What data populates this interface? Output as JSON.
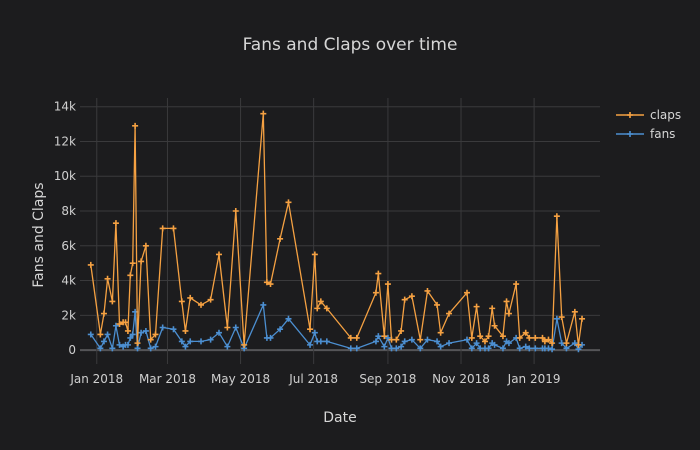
{
  "chart_data": {
    "type": "line",
    "title": "Fans and Claps over time",
    "xlabel": "Date",
    "ylabel": "Fans and Claps",
    "xlim": [
      "2017-12-18",
      "2019-02-25"
    ],
    "ylim": [
      -800,
      14500
    ],
    "x_ticks": [
      {
        "date": "2018-01-01",
        "label": "Jan 2018"
      },
      {
        "date": "2018-03-01",
        "label": "Mar 2018"
      },
      {
        "date": "2018-05-01",
        "label": "May 2018"
      },
      {
        "date": "2018-07-01",
        "label": "Jul 2018"
      },
      {
        "date": "2018-09-01",
        "label": "Sep 2018"
      },
      {
        "date": "2018-11-01",
        "label": "Nov 2018"
      },
      {
        "date": "2019-01-01",
        "label": "Jan 2019"
      }
    ],
    "y_ticks": [
      {
        "value": 0,
        "label": "0"
      },
      {
        "value": 2000,
        "label": "2k"
      },
      {
        "value": 4000,
        "label": "4k"
      },
      {
        "value": 6000,
        "label": "6k"
      },
      {
        "value": 8000,
        "label": "8k"
      },
      {
        "value": 10000,
        "label": "10k"
      },
      {
        "value": 12000,
        "label": "12k"
      },
      {
        "value": 14000,
        "label": "14k"
      }
    ],
    "grid": true,
    "legend": "top-right",
    "series": [
      {
        "name": "claps",
        "color": "#f5a142",
        "points": [
          [
            "2017-12-27",
            4900
          ],
          [
            "2018-01-04",
            900
          ],
          [
            "2018-01-07",
            2100
          ],
          [
            "2018-01-10",
            4100
          ],
          [
            "2018-01-14",
            2800
          ],
          [
            "2018-01-17",
            7300
          ],
          [
            "2018-01-20",
            1500
          ],
          [
            "2018-01-23",
            1600
          ],
          [
            "2018-01-25",
            1600
          ],
          [
            "2018-01-27",
            1100
          ],
          [
            "2018-01-29",
            4300
          ],
          [
            "2018-01-31",
            5000
          ],
          [
            "2018-02-02",
            12900
          ],
          [
            "2018-02-04",
            400
          ],
          [
            "2018-02-07",
            5100
          ],
          [
            "2018-02-11",
            6000
          ],
          [
            "2018-02-15",
            600
          ],
          [
            "2018-02-19",
            900
          ],
          [
            "2018-02-25",
            7000
          ],
          [
            "2018-03-06",
            7000
          ],
          [
            "2018-03-13",
            2800
          ],
          [
            "2018-03-16",
            1100
          ],
          [
            "2018-03-20",
            3000
          ],
          [
            "2018-03-29",
            2600
          ],
          [
            "2018-04-06",
            2900
          ],
          [
            "2018-04-13",
            5500
          ],
          [
            "2018-04-20",
            1300
          ],
          [
            "2018-04-27",
            8000
          ],
          [
            "2018-05-04",
            300
          ],
          [
            "2018-05-20",
            13600
          ],
          [
            "2018-05-23",
            3900
          ],
          [
            "2018-05-26",
            3800
          ],
          [
            "2018-06-03",
            6400
          ],
          [
            "2018-06-10",
            8500
          ],
          [
            "2018-06-28",
            1200
          ],
          [
            "2018-07-02",
            5500
          ],
          [
            "2018-07-04",
            2400
          ],
          [
            "2018-07-07",
            2800
          ],
          [
            "2018-07-12",
            2400
          ],
          [
            "2018-08-01",
            700
          ],
          [
            "2018-08-06",
            700
          ],
          [
            "2018-08-22",
            3300
          ],
          [
            "2018-08-24",
            4400
          ],
          [
            "2018-08-29",
            800
          ],
          [
            "2018-09-01",
            3800
          ],
          [
            "2018-09-04",
            600
          ],
          [
            "2018-09-08",
            600
          ],
          [
            "2018-09-12",
            1100
          ],
          [
            "2018-09-15",
            2900
          ],
          [
            "2018-09-21",
            3100
          ],
          [
            "2018-09-28",
            600
          ],
          [
            "2018-10-04",
            3400
          ],
          [
            "2018-10-12",
            2600
          ],
          [
            "2018-10-15",
            1000
          ],
          [
            "2018-10-22",
            2100
          ],
          [
            "2018-11-06",
            3300
          ],
          [
            "2018-11-10",
            700
          ],
          [
            "2018-11-14",
            2500
          ],
          [
            "2018-11-17",
            800
          ],
          [
            "2018-11-21",
            500
          ],
          [
            "2018-11-24",
            800
          ],
          [
            "2018-11-27",
            2400
          ],
          [
            "2018-11-29",
            1400
          ],
          [
            "2018-12-06",
            800
          ],
          [
            "2018-12-09",
            2800
          ],
          [
            "2018-12-11",
            2100
          ],
          [
            "2018-12-17",
            3800
          ],
          [
            "2018-12-20",
            700
          ],
          [
            "2018-12-25",
            1000
          ],
          [
            "2018-12-28",
            700
          ],
          [
            "2019-01-02",
            700
          ],
          [
            "2019-01-08",
            700
          ],
          [
            "2019-01-10",
            500
          ],
          [
            "2019-01-13",
            600
          ],
          [
            "2019-01-16",
            400
          ],
          [
            "2019-01-20",
            7700
          ],
          [
            "2019-01-24",
            1900
          ],
          [
            "2019-01-28",
            400
          ],
          [
            "2019-02-04",
            2200
          ],
          [
            "2019-02-07",
            300
          ],
          [
            "2019-02-10",
            1800
          ]
        ]
      },
      {
        "name": "fans",
        "color": "#4c8fd1",
        "points": [
          [
            "2017-12-27",
            900
          ],
          [
            "2018-01-04",
            100
          ],
          [
            "2018-01-07",
            500
          ],
          [
            "2018-01-10",
            900
          ],
          [
            "2018-01-14",
            100
          ],
          [
            "2018-01-17",
            1400
          ],
          [
            "2018-01-20",
            300
          ],
          [
            "2018-01-23",
            200
          ],
          [
            "2018-01-25",
            300
          ],
          [
            "2018-01-27",
            300
          ],
          [
            "2018-01-29",
            700
          ],
          [
            "2018-01-31",
            900
          ],
          [
            "2018-02-02",
            2200
          ],
          [
            "2018-02-04",
            100
          ],
          [
            "2018-02-07",
            1000
          ],
          [
            "2018-02-11",
            1100
          ],
          [
            "2018-02-15",
            100
          ],
          [
            "2018-02-19",
            200
          ],
          [
            "2018-02-25",
            1300
          ],
          [
            "2018-03-06",
            1200
          ],
          [
            "2018-03-13",
            500
          ],
          [
            "2018-03-16",
            200
          ],
          [
            "2018-03-20",
            500
          ],
          [
            "2018-03-29",
            500
          ],
          [
            "2018-04-06",
            600
          ],
          [
            "2018-04-13",
            1000
          ],
          [
            "2018-04-20",
            200
          ],
          [
            "2018-04-27",
            1300
          ],
          [
            "2018-05-04",
            100
          ],
          [
            "2018-05-20",
            2600
          ],
          [
            "2018-05-23",
            700
          ],
          [
            "2018-05-26",
            700
          ],
          [
            "2018-06-03",
            1200
          ],
          [
            "2018-06-10",
            1800
          ],
          [
            "2018-06-28",
            300
          ],
          [
            "2018-07-02",
            1000
          ],
          [
            "2018-07-04",
            500
          ],
          [
            "2018-07-07",
            500
          ],
          [
            "2018-07-12",
            500
          ],
          [
            "2018-08-01",
            100
          ],
          [
            "2018-08-06",
            100
          ],
          [
            "2018-08-22",
            500
          ],
          [
            "2018-08-24",
            800
          ],
          [
            "2018-08-29",
            200
          ],
          [
            "2018-09-01",
            700
          ],
          [
            "2018-09-04",
            100
          ],
          [
            "2018-09-08",
            100
          ],
          [
            "2018-09-12",
            200
          ],
          [
            "2018-09-15",
            500
          ],
          [
            "2018-09-21",
            600
          ],
          [
            "2018-09-28",
            100
          ],
          [
            "2018-10-04",
            600
          ],
          [
            "2018-10-12",
            500
          ],
          [
            "2018-10-15",
            200
          ],
          [
            "2018-10-22",
            400
          ],
          [
            "2018-11-06",
            600
          ],
          [
            "2018-11-10",
            100
          ],
          [
            "2018-11-14",
            400
          ],
          [
            "2018-11-17",
            100
          ],
          [
            "2018-11-21",
            100
          ],
          [
            "2018-11-24",
            100
          ],
          [
            "2018-11-27",
            400
          ],
          [
            "2018-11-29",
            300
          ],
          [
            "2018-12-06",
            100
          ],
          [
            "2018-12-09",
            500
          ],
          [
            "2018-12-11",
            400
          ],
          [
            "2018-12-17",
            700
          ],
          [
            "2018-12-20",
            100
          ],
          [
            "2018-12-25",
            200
          ],
          [
            "2018-12-28",
            100
          ],
          [
            "2019-01-02",
            100
          ],
          [
            "2019-01-08",
            100
          ],
          [
            "2019-01-10",
            100
          ],
          [
            "2019-01-13",
            100
          ],
          [
            "2019-01-16",
            50
          ],
          [
            "2019-01-20",
            1800
          ],
          [
            "2019-01-24",
            400
          ],
          [
            "2019-01-28",
            100
          ],
          [
            "2019-02-04",
            400
          ],
          [
            "2019-02-07",
            50
          ],
          [
            "2019-02-10",
            300
          ]
        ]
      }
    ]
  }
}
